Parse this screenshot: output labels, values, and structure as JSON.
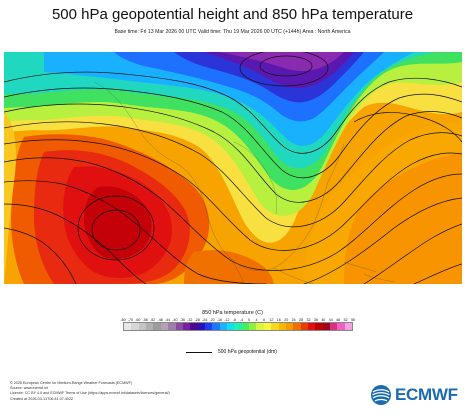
{
  "title": "500 hPa geopotential height and 850 hPa temperature",
  "subtitle": "Base time: Fri 13 Mar 2026 00 UTC Valid time: Thu 19 Mar 2026 00 UTC (+144h) Area : North America",
  "map": {
    "region": "North America",
    "fields": [
      "850 hPa temperature",
      "500 hPa geopotential"
    ]
  },
  "legend": {
    "title": "850 hPa temperature (C)",
    "ticks": [
      "-80",
      "-70",
      "-60",
      "-56",
      "-52",
      "-48",
      "-44",
      "-40",
      "-36",
      "-32",
      "-28",
      "-24",
      "-20",
      "-16",
      "-12",
      "-8",
      "-4",
      "0",
      "4",
      "8",
      "12",
      "16",
      "20",
      "24",
      "28",
      "32",
      "36",
      "40",
      "44",
      "48",
      "52",
      "56"
    ],
    "colors": [
      "#e8e8e8",
      "#d6d6d6",
      "#c4c4c4",
      "#b0b0b0",
      "#9c9c9c",
      "#b6a0b6",
      "#a07ca8",
      "#8a4aa0",
      "#7a1ea0",
      "#4a0a8c",
      "#2a10b8",
      "#1e3cf0",
      "#1e78ff",
      "#18b4ff",
      "#10e0f0",
      "#20f0b0",
      "#40f060",
      "#90f040",
      "#d8f840",
      "#f8f840",
      "#f8d820",
      "#f8b800",
      "#f89800",
      "#f06e00",
      "#e83c00",
      "#e01010",
      "#c00000",
      "#a00020",
      "#d83080",
      "#f060c0",
      "#f8a0e0"
    ],
    "contour_label": "500 hPa geopotential (dm)"
  },
  "footer": [
    "© 2026 European Centre for Medium-Range Weather Forecasts (ECMWF)",
    "Source: www.ecmwf.int",
    "Licence: CC BY 4.0 and ECMWF Terms of Use (https://apps.ecmwf.int/datasets/licences/general/)",
    "Created at 2026-03-13T06:41:37.402Z"
  ],
  "logo_text": "ECMWF"
}
